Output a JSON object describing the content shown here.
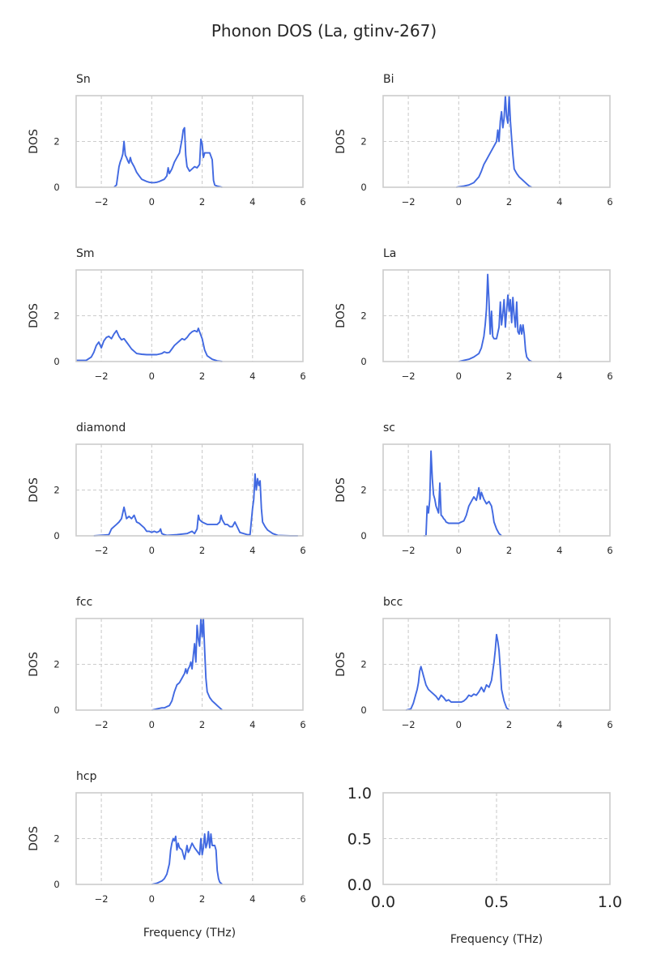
{
  "title": "Phonon DOS (La, gtinv-267)",
  "line_color": "#4169e1",
  "chart_data": [
    {
      "type": "line",
      "title": "Sn",
      "xlabel": "",
      "ylabel": "DOS",
      "xlim": [
        -3,
        6
      ],
      "ylim": [
        0,
        4
      ],
      "xticks": [
        -2,
        0,
        2,
        4,
        6
      ],
      "yticks": [
        0,
        2
      ],
      "x": [
        -1.5,
        -1.4,
        -1.3,
        -1.25,
        -1.2,
        -1.15,
        -1.1,
        -1.05,
        -1.0,
        -0.95,
        -0.9,
        -0.85,
        -0.8,
        -0.7,
        -0.6,
        -0.5,
        -0.4,
        -0.3,
        -0.2,
        -0.1,
        0.0,
        0.1,
        0.2,
        0.3,
        0.4,
        0.5,
        0.6,
        0.65,
        0.7,
        0.75,
        0.8,
        0.9,
        1.0,
        1.1,
        1.2,
        1.25,
        1.3,
        1.35,
        1.4,
        1.5,
        1.6,
        1.7,
        1.8,
        1.9,
        1.95,
        2.0,
        2.05,
        2.1,
        2.2,
        2.3,
        2.4,
        2.45,
        2.5,
        2.6,
        2.8
      ],
      "y": [
        0,
        0.1,
        0.9,
        1.1,
        1.25,
        1.45,
        2.0,
        1.4,
        1.3,
        1.15,
        1.05,
        1.3,
        1.1,
        0.9,
        0.65,
        0.5,
        0.35,
        0.3,
        0.25,
        0.22,
        0.2,
        0.2,
        0.22,
        0.25,
        0.3,
        0.35,
        0.5,
        0.85,
        0.6,
        0.7,
        0.8,
        1.1,
        1.3,
        1.5,
        2.1,
        2.5,
        2.6,
        1.4,
        0.9,
        0.7,
        0.8,
        0.9,
        0.85,
        1.0,
        2.1,
        1.9,
        1.3,
        1.5,
        1.5,
        1.5,
        1.2,
        0.3,
        0.1,
        0.05,
        0
      ]
    },
    {
      "type": "line",
      "title": "Bi",
      "xlabel": "",
      "ylabel": "DOS",
      "xlim": [
        -3,
        6
      ],
      "ylim": [
        0,
        4
      ],
      "xticks": [
        -2,
        0,
        2,
        4,
        6
      ],
      "yticks": [
        0,
        2
      ],
      "x": [
        -0.1,
        0.0,
        0.2,
        0.4,
        0.6,
        0.8,
        0.9,
        1.0,
        1.1,
        1.2,
        1.3,
        1.4,
        1.5,
        1.55,
        1.6,
        1.65,
        1.7,
        1.75,
        1.8,
        1.85,
        1.9,
        1.95,
        2.0,
        2.05,
        2.1,
        2.15,
        2.2,
        2.3,
        2.4,
        2.5,
        2.6,
        2.7,
        2.8,
        2.9
      ],
      "y": [
        0,
        0.02,
        0.05,
        0.1,
        0.2,
        0.45,
        0.7,
        1.0,
        1.2,
        1.4,
        1.6,
        1.8,
        2.0,
        2.5,
        2.0,
        2.9,
        3.3,
        2.6,
        3.0,
        4.0,
        3.1,
        2.8,
        4.0,
        2.9,
        2.1,
        1.4,
        0.8,
        0.6,
        0.45,
        0.35,
        0.25,
        0.15,
        0.05,
        0
      ]
    },
    {
      "type": "line",
      "title": "Sm",
      "xlabel": "",
      "ylabel": "DOS",
      "xlim": [
        -3,
        6
      ],
      "ylim": [
        0,
        4
      ],
      "xticks": [
        -2,
        0,
        2,
        4,
        6
      ],
      "yticks": [
        0,
        2
      ],
      "x": [
        -3.0,
        -2.6,
        -2.4,
        -2.3,
        -2.2,
        -2.1,
        -2.0,
        -1.9,
        -1.8,
        -1.7,
        -1.6,
        -1.5,
        -1.4,
        -1.3,
        -1.2,
        -1.1,
        -1.0,
        -0.9,
        -0.8,
        -0.7,
        -0.6,
        -0.4,
        -0.2,
        0.0,
        0.2,
        0.4,
        0.5,
        0.6,
        0.7,
        0.8,
        0.9,
        1.0,
        1.1,
        1.2,
        1.3,
        1.4,
        1.5,
        1.6,
        1.7,
        1.8,
        1.85,
        1.9,
        2.0,
        2.1,
        2.2,
        2.4,
        2.6,
        2.8
      ],
      "y": [
        0.05,
        0.05,
        0.2,
        0.4,
        0.7,
        0.85,
        0.6,
        0.9,
        1.05,
        1.1,
        1.0,
        1.2,
        1.35,
        1.1,
        0.95,
        1.0,
        0.85,
        0.7,
        0.55,
        0.45,
        0.35,
        0.32,
        0.3,
        0.3,
        0.3,
        0.35,
        0.42,
        0.38,
        0.4,
        0.55,
        0.7,
        0.8,
        0.9,
        1.0,
        0.95,
        1.05,
        1.2,
        1.3,
        1.35,
        1.3,
        1.45,
        1.3,
        1.0,
        0.5,
        0.25,
        0.1,
        0.03,
        0
      ]
    },
    {
      "type": "line",
      "title": "La",
      "xlabel": "",
      "ylabel": "DOS",
      "xlim": [
        -3,
        6
      ],
      "ylim": [
        0,
        4
      ],
      "xticks": [
        -2,
        0,
        2,
        4,
        6
      ],
      "yticks": [
        0,
        2
      ],
      "x": [
        0.0,
        0.2,
        0.4,
        0.6,
        0.8,
        0.9,
        1.0,
        1.05,
        1.1,
        1.15,
        1.2,
        1.25,
        1.3,
        1.35,
        1.4,
        1.5,
        1.6,
        1.65,
        1.7,
        1.75,
        1.8,
        1.85,
        1.9,
        1.95,
        2.0,
        2.05,
        2.1,
        2.15,
        2.2,
        2.25,
        2.3,
        2.35,
        2.4,
        2.45,
        2.5,
        2.55,
        2.6,
        2.65,
        2.7,
        2.8,
        2.9
      ],
      "y": [
        0,
        0.05,
        0.1,
        0.2,
        0.35,
        0.6,
        1.1,
        1.6,
        2.3,
        3.8,
        2.6,
        1.2,
        2.2,
        1.1,
        1.0,
        1.0,
        1.5,
        2.6,
        1.6,
        2.1,
        2.7,
        1.5,
        2.2,
        2.9,
        2.2,
        2.7,
        1.7,
        2.8,
        2.0,
        1.5,
        2.6,
        1.3,
        1.2,
        1.6,
        1.2,
        1.6,
        1.2,
        0.5,
        0.2,
        0.05,
        0
      ]
    },
    {
      "type": "line",
      "title": "diamond",
      "xlabel": "",
      "ylabel": "DOS",
      "xlim": [
        -3,
        6
      ],
      "ylim": [
        0,
        4
      ],
      "xticks": [
        -2,
        0,
        2,
        4,
        6
      ],
      "yticks": [
        0,
        2
      ],
      "x": [
        -2.3,
        -1.7,
        -1.6,
        -1.5,
        -1.4,
        -1.3,
        -1.2,
        -1.1,
        -1.05,
        -1.0,
        -0.95,
        -0.9,
        -0.8,
        -0.7,
        -0.6,
        -0.5,
        -0.4,
        -0.3,
        -0.2,
        -0.1,
        0.0,
        0.1,
        0.2,
        0.3,
        0.35,
        0.4,
        0.5,
        0.6,
        1.0,
        1.4,
        1.6,
        1.7,
        1.8,
        1.85,
        1.9,
        2.0,
        2.1,
        2.2,
        2.4,
        2.6,
        2.7,
        2.75,
        2.8,
        2.9,
        3.0,
        3.1,
        3.2,
        3.3,
        3.5,
        3.8,
        3.9,
        4.0,
        4.05,
        4.1,
        4.15,
        4.2,
        4.25,
        4.3,
        4.35,
        4.4,
        4.5,
        4.6,
        4.8,
        5.0,
        5.5,
        5.8
      ],
      "y": [
        0,
        0.05,
        0.3,
        0.4,
        0.5,
        0.6,
        0.75,
        1.25,
        1.0,
        0.75,
        0.8,
        0.85,
        0.75,
        0.9,
        0.6,
        0.55,
        0.45,
        0.35,
        0.2,
        0.2,
        0.15,
        0.2,
        0.15,
        0.2,
        0.3,
        0.1,
        0.05,
        0.02,
        0.05,
        0.1,
        0.2,
        0.1,
        0.3,
        0.9,
        0.7,
        0.6,
        0.55,
        0.5,
        0.5,
        0.5,
        0.6,
        0.9,
        0.7,
        0.5,
        0.5,
        0.4,
        0.4,
        0.6,
        0.15,
        0.05,
        0.05,
        1.2,
        1.6,
        2.7,
        2.0,
        2.5,
        2.2,
        2.4,
        1.2,
        0.6,
        0.4,
        0.25,
        0.1,
        0.02,
        0,
        0
      ]
    },
    {
      "type": "line",
      "title": "sc",
      "xlabel": "",
      "ylabel": "DOS",
      "xlim": [
        -3,
        6
      ],
      "ylim": [
        0,
        4
      ],
      "xticks": [
        -2,
        0,
        2,
        4,
        6
      ],
      "yticks": [
        0,
        2
      ],
      "x": [
        -1.4,
        -1.35,
        -1.3,
        -1.25,
        -1.2,
        -1.15,
        -1.1,
        -1.05,
        -1.0,
        -0.95,
        -0.9,
        -0.85,
        -0.8,
        -0.75,
        -0.7,
        -0.65,
        -0.6,
        -0.55,
        -0.5,
        -0.4,
        -0.3,
        -0.2,
        -0.1,
        0.0,
        0.1,
        0.2,
        0.3,
        0.4,
        0.5,
        0.6,
        0.7,
        0.75,
        0.8,
        0.85,
        0.9,
        1.0,
        1.1,
        1.2,
        1.3,
        1.35,
        1.4,
        1.5,
        1.6,
        1.7
      ],
      "y": [
        0,
        0,
        0,
        1.3,
        1.0,
        1.6,
        3.7,
        2.5,
        1.8,
        1.6,
        1.3,
        1.15,
        1.0,
        2.3,
        0.9,
        0.85,
        0.75,
        0.7,
        0.6,
        0.55,
        0.55,
        0.55,
        0.55,
        0.55,
        0.6,
        0.65,
        0.9,
        1.3,
        1.5,
        1.7,
        1.55,
        1.8,
        2.1,
        1.6,
        1.9,
        1.6,
        1.4,
        1.5,
        1.3,
        1.0,
        0.6,
        0.3,
        0.1,
        0
      ]
    },
    {
      "type": "line",
      "title": "fcc",
      "xlabel": "",
      "ylabel": "DOS",
      "xlim": [
        -3,
        6
      ],
      "ylim": [
        0,
        4
      ],
      "xticks": [
        -2,
        0,
        2,
        4,
        6
      ],
      "yticks": [
        0,
        2
      ],
      "x": [
        0.0,
        0.2,
        0.4,
        0.5,
        0.6,
        0.7,
        0.8,
        0.9,
        1.0,
        1.1,
        1.2,
        1.3,
        1.35,
        1.4,
        1.45,
        1.5,
        1.55,
        1.6,
        1.65,
        1.7,
        1.75,
        1.8,
        1.85,
        1.9,
        1.95,
        2.0,
        2.05,
        2.1,
        2.15,
        2.2,
        2.3,
        2.4,
        2.5,
        2.6,
        2.7,
        2.8
      ],
      "y": [
        0,
        0.05,
        0.1,
        0.1,
        0.15,
        0.2,
        0.4,
        0.8,
        1.1,
        1.2,
        1.4,
        1.6,
        1.8,
        1.6,
        1.8,
        1.9,
        2.1,
        1.8,
        2.4,
        2.9,
        2.1,
        3.7,
        3.1,
        2.8,
        4.0,
        3.2,
        4.0,
        2.6,
        1.4,
        0.8,
        0.55,
        0.4,
        0.3,
        0.2,
        0.1,
        0
      ]
    },
    {
      "type": "line",
      "title": "bcc",
      "xlabel": "",
      "ylabel": "DOS",
      "xlim": [
        -3,
        6
      ],
      "ylim": [
        0,
        4
      ],
      "xticks": [
        -2,
        0,
        2,
        4,
        6
      ],
      "yticks": [
        0,
        2
      ],
      "x": [
        -2.1,
        -1.9,
        -1.8,
        -1.7,
        -1.65,
        -1.6,
        -1.55,
        -1.5,
        -1.4,
        -1.3,
        -1.2,
        -1.1,
        -1.0,
        -0.9,
        -0.8,
        -0.7,
        -0.6,
        -0.5,
        -0.4,
        -0.3,
        -0.2,
        -0.1,
        0.0,
        0.1,
        0.2,
        0.3,
        0.4,
        0.5,
        0.6,
        0.7,
        0.8,
        0.9,
        1.0,
        1.1,
        1.2,
        1.3,
        1.4,
        1.45,
        1.5,
        1.55,
        1.6,
        1.65,
        1.7,
        1.8,
        1.9,
        2.0
      ],
      "y": [
        0,
        0.05,
        0.3,
        0.7,
        0.9,
        1.2,
        1.7,
        1.9,
        1.5,
        1.1,
        0.9,
        0.8,
        0.7,
        0.6,
        0.45,
        0.65,
        0.55,
        0.4,
        0.45,
        0.35,
        0.35,
        0.35,
        0.35,
        0.35,
        0.4,
        0.5,
        0.65,
        0.6,
        0.7,
        0.65,
        0.8,
        1.0,
        0.8,
        1.1,
        1.0,
        1.3,
        2.1,
        2.6,
        3.3,
        3.0,
        2.6,
        1.8,
        0.9,
        0.4,
        0.1,
        0
      ]
    },
    {
      "type": "line",
      "title": "hcp",
      "xlabel": "Frequency (THz)",
      "ylabel": "DOS",
      "xlim": [
        -3,
        6
      ],
      "ylim": [
        0,
        4
      ],
      "xticks": [
        -2,
        0,
        2,
        4,
        6
      ],
      "yticks": [
        0,
        2
      ],
      "x": [
        0.0,
        0.2,
        0.4,
        0.5,
        0.6,
        0.7,
        0.75,
        0.8,
        0.85,
        0.9,
        0.95,
        1.0,
        1.05,
        1.1,
        1.2,
        1.3,
        1.4,
        1.45,
        1.5,
        1.6,
        1.7,
        1.8,
        1.9,
        1.95,
        2.0,
        2.05,
        2.1,
        2.15,
        2.2,
        2.25,
        2.3,
        2.35,
        2.4,
        2.5,
        2.55,
        2.6,
        2.65,
        2.7,
        2.8
      ],
      "y": [
        0,
        0.05,
        0.15,
        0.25,
        0.45,
        0.9,
        1.5,
        1.8,
        2.0,
        1.9,
        2.1,
        1.5,
        1.8,
        1.6,
        1.5,
        1.1,
        1.7,
        1.4,
        1.5,
        1.8,
        1.6,
        1.45,
        1.3,
        2.0,
        1.3,
        1.6,
        2.2,
        1.6,
        1.8,
        2.3,
        1.6,
        2.2,
        1.7,
        1.7,
        1.5,
        0.6,
        0.25,
        0.1,
        0
      ]
    },
    {
      "type": "line",
      "title": "",
      "xlabel": "Frequency (THz)",
      "ylabel": "",
      "xlim": [
        0,
        1
      ],
      "ylim": [
        0,
        1
      ],
      "xticks": [
        0.0,
        0.5,
        1.0
      ],
      "xtick_labels": [
        "0.0",
        "0.5",
        "1.0"
      ],
      "yticks": [
        0.0,
        0.5,
        1.0
      ],
      "ytick_labels": [
        "0.0",
        "0.5",
        "1.0"
      ],
      "x": [],
      "y": []
    }
  ]
}
